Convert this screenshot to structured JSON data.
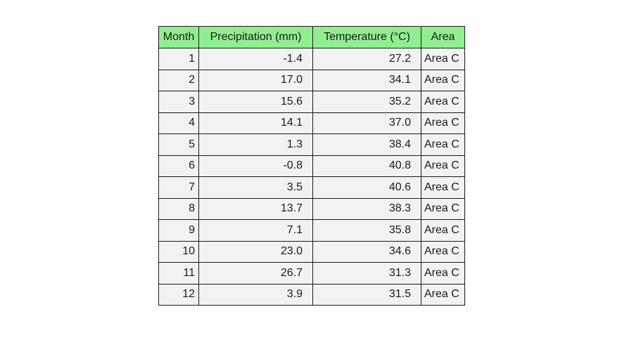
{
  "chart_data": {
    "type": "table",
    "columns": [
      "Month",
      "Precipitation (mm)",
      "Temperature (°C)",
      "Area"
    ],
    "rows": [
      [
        "1",
        "-1.4",
        "27.2",
        "Area C"
      ],
      [
        "2",
        "17.0",
        "34.1",
        "Area C"
      ],
      [
        "3",
        "15.6",
        "35.2",
        "Area C"
      ],
      [
        "4",
        "14.1",
        "37.0",
        "Area C"
      ],
      [
        "5",
        "1.3",
        "38.4",
        "Area C"
      ],
      [
        "6",
        "-0.8",
        "40.8",
        "Area C"
      ],
      [
        "7",
        "3.5",
        "40.6",
        "Area C"
      ],
      [
        "8",
        "13.7",
        "38.3",
        "Area C"
      ],
      [
        "9",
        "7.1",
        "35.8",
        "Area C"
      ],
      [
        "10",
        "23.0",
        "34.6",
        "Area C"
      ],
      [
        "11",
        "26.7",
        "31.3",
        "Area C"
      ],
      [
        "12",
        "3.9",
        "31.5",
        "Area C"
      ]
    ],
    "colors": {
      "header_background": "#90ee90",
      "cell_background": "#f2f2f2",
      "border": "#1a1a1a"
    }
  }
}
